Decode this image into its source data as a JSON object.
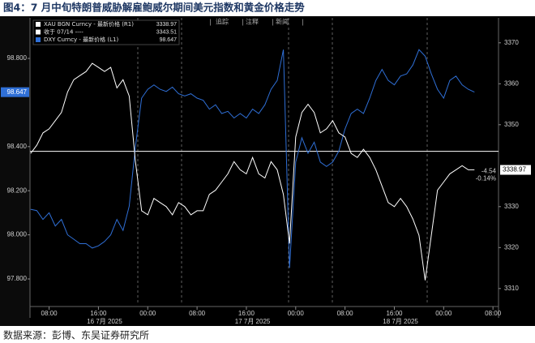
{
  "chart_data": {
    "type": "line",
    "title": "图4：7 月中旬特朗普威胁解雇鲍威尔期间美元指数和黄金价格走势",
    "source": "数据来源：彭博、东吴证券研究所",
    "toolbar": [
      "追踪",
      "注释",
      "新闻"
    ],
    "x": [
      5,
      6,
      7,
      8,
      9,
      10,
      11,
      12,
      13,
      14,
      15,
      16,
      17,
      18,
      19,
      20,
      21,
      22,
      23,
      24,
      25,
      26,
      27,
      28,
      29,
      30,
      31,
      32,
      33,
      34,
      35,
      36,
      37,
      38,
      39,
      40,
      41,
      42,
      43,
      44,
      45,
      46,
      47,
      48,
      49,
      50,
      51,
      52,
      53,
      54,
      55,
      56,
      57,
      58,
      59,
      60,
      61,
      62,
      63,
      64,
      65,
      66,
      67,
      68,
      69,
      70,
      71,
      72,
      73,
      74,
      75,
      76,
      77
    ],
    "xlim": [
      4.9,
      80.9
    ],
    "xticks": [
      {
        "value": 8,
        "label": "08:00"
      },
      {
        "value": 16,
        "label": "16:00"
      },
      {
        "value": 24,
        "label": "00:00"
      },
      {
        "value": 32,
        "label": "08:00"
      },
      {
        "value": 40,
        "label": "16:00"
      },
      {
        "value": 48,
        "label": "00:00"
      },
      {
        "value": 56,
        "label": "08:00"
      },
      {
        "value": 64,
        "label": "16:00"
      },
      {
        "value": 72,
        "label": "00:00"
      },
      {
        "value": 80,
        "label": "08:00"
      }
    ],
    "date_ticks": [
      {
        "value": 17,
        "label": "16 7月 2025"
      },
      {
        "value": 41,
        "label": "17 7月 2025"
      },
      {
        "value": 65,
        "label": "18 7月 2025"
      }
    ],
    "ylim": [
      97.686,
      98.984
    ],
    "yticks": [
      {
        "value": 98.8,
        "label": "98.800"
      },
      {
        "value": 98.4,
        "label": "98.400"
      },
      {
        "value": 98.2,
        "label": "98.200"
      },
      {
        "value": 98.0,
        "label": "98.000"
      },
      {
        "value": 97.8,
        "label": "97.800"
      }
    ],
    "y2lim": [
      3306.2,
      3376.1
    ],
    "y2ticks": [
      3370,
      3360,
      3350,
      3330,
      3320,
      3310
    ],
    "series": [
      {
        "name": "XAU BGN Curncy - 最新价格 (R1)",
        "color": "#ffffff",
        "axis": "y2",
        "last_value": 3338.97,
        "values": [
          3343,
          3345,
          3348,
          3349,
          3351,
          3353,
          3358,
          3361,
          3362,
          3363,
          3365,
          3364,
          3363,
          3364,
          3359,
          3361,
          3357,
          3341,
          3329,
          3328,
          3332,
          3331,
          3330,
          3328,
          3331,
          3330,
          3328,
          3329,
          3329,
          3333,
          3334,
          3336,
          3338,
          3341,
          3339,
          3338,
          3342,
          3338,
          3337,
          3341,
          3339,
          3333,
          3321,
          3347,
          3353,
          3355,
          3353,
          3348,
          3349,
          3351,
          3348,
          3347,
          3343,
          3342,
          3344,
          3342,
          3339,
          3335,
          3331,
          3330,
          3332,
          3330,
          3327,
          3323,
          3312,
          3323,
          3334,
          3336,
          3338,
          3339,
          3340,
          3339,
          3339
        ]
      },
      {
        "name": "DXY Curncy - 最新价格 (L1)",
        "color": "#2f6fd6",
        "axis": "y",
        "last_value": 98.647,
        "values": [
          98.116,
          98.11,
          98.07,
          98.1,
          98.04,
          98.07,
          98.0,
          97.98,
          97.96,
          97.96,
          97.94,
          97.95,
          97.97,
          98.0,
          98.07,
          98.02,
          98.13,
          98.4,
          98.62,
          98.66,
          98.68,
          98.66,
          98.65,
          98.67,
          98.64,
          98.63,
          98.64,
          98.62,
          98.61,
          98.57,
          98.59,
          98.55,
          98.56,
          98.53,
          98.55,
          98.53,
          98.57,
          98.55,
          98.59,
          98.66,
          98.7,
          98.84,
          97.85,
          98.33,
          98.44,
          98.37,
          98.42,
          98.33,
          98.31,
          98.33,
          98.38,
          98.48,
          98.55,
          98.57,
          98.55,
          98.62,
          98.7,
          98.75,
          98.7,
          98.68,
          98.72,
          98.73,
          98.77,
          98.84,
          98.81,
          98.73,
          98.66,
          98.62,
          98.7,
          98.72,
          98.68,
          98.66,
          98.647
        ]
      }
    ],
    "reference_line": {
      "name": "收于 07/14 ----",
      "value": 3343.51,
      "axis": "y2",
      "color": "#ffffff"
    },
    "change": {
      "value": -4.54,
      "percent": {
        "value": -0.14,
        "label": "-0.14%"
      }
    }
  }
}
